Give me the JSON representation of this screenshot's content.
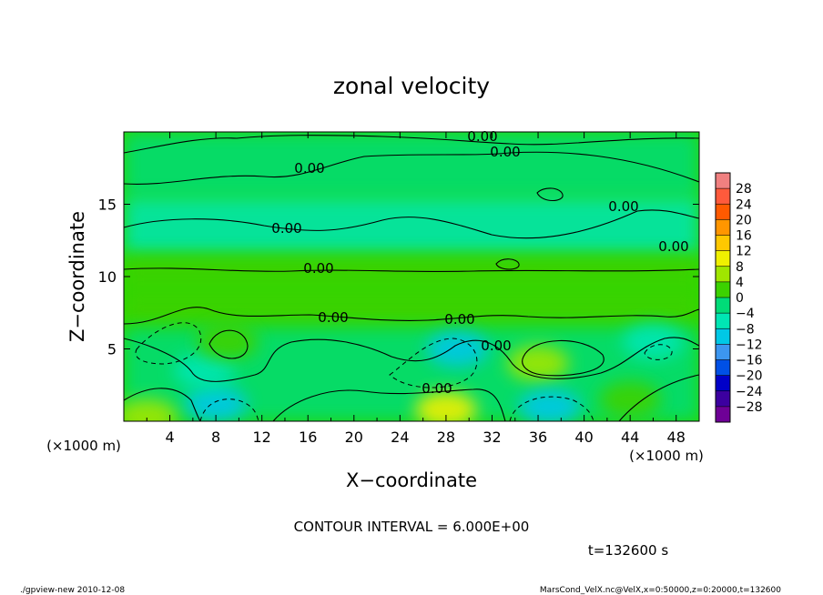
{
  "chart_data": {
    "type": "heatmap",
    "title": "zonal velocity",
    "xlabel": "X−coordinate",
    "ylabel": "Z−coordinate",
    "x_unit_label": "(×1000 m)",
    "y_unit_label": "(×1000 m)",
    "xlim": [
      0,
      50
    ],
    "ylim": [
      0,
      20
    ],
    "x_ticks": [
      4,
      8,
      12,
      16,
      20,
      24,
      28,
      32,
      36,
      40,
      44,
      48
    ],
    "x_tick_labels": [
      "4",
      "8",
      "12",
      "16",
      "20",
      "24",
      "28",
      "32",
      "36",
      "40",
      "44",
      "48"
    ],
    "y_ticks": [
      5,
      10,
      15
    ],
    "y_tick_labels": [
      "5",
      "10",
      "15"
    ],
    "colorbar": {
      "labels": [
        "28",
        "24",
        "20",
        "16",
        "12",
        "8",
        "4",
        "0",
        "−4",
        "−8",
        "−12",
        "−16",
        "−20",
        "−24",
        "−28"
      ],
      "colors": [
        "#f08080",
        "#ff5a3c",
        "#ff5a00",
        "#ff9600",
        "#ffc800",
        "#f0f000",
        "#a0e600",
        "#3cd200",
        "#00dc78",
        "#00e6b4",
        "#00c8e6",
        "#3c96f0",
        "#0050e6",
        "#0000c8",
        "#3c00a0",
        "#6e0096"
      ]
    },
    "contour_label": "0.00",
    "contour_interval_text": "CONTOUR INTERVAL = 6.000E+00",
    "time_text": "t=132600 s",
    "features": [
      {
        "x": 8,
        "z": 1.2,
        "v": -8
      },
      {
        "x": 28,
        "z": 0.8,
        "v": 10
      },
      {
        "x": 29,
        "z": 5.0,
        "v": -10
      },
      {
        "x": 36,
        "z": 4.0,
        "v": 6
      },
      {
        "x": 37,
        "z": 1.0,
        "v": -8
      },
      {
        "x": 7,
        "z": 3.5,
        "v": -5
      },
      {
        "x": 9,
        "z": 5.5,
        "v": 4
      },
      {
        "x": 46,
        "z": 5.5,
        "v": -5
      },
      {
        "x": 2,
        "z": 0.3,
        "v": 7
      },
      {
        "x": 44,
        "z": 1.5,
        "v": 3
      }
    ]
  },
  "footer": {
    "left": "./gpview-new  2010-12-08",
    "right": "MarsCond_VelX.nc@VelX,x=0:50000,z=0:20000,t=132600"
  }
}
